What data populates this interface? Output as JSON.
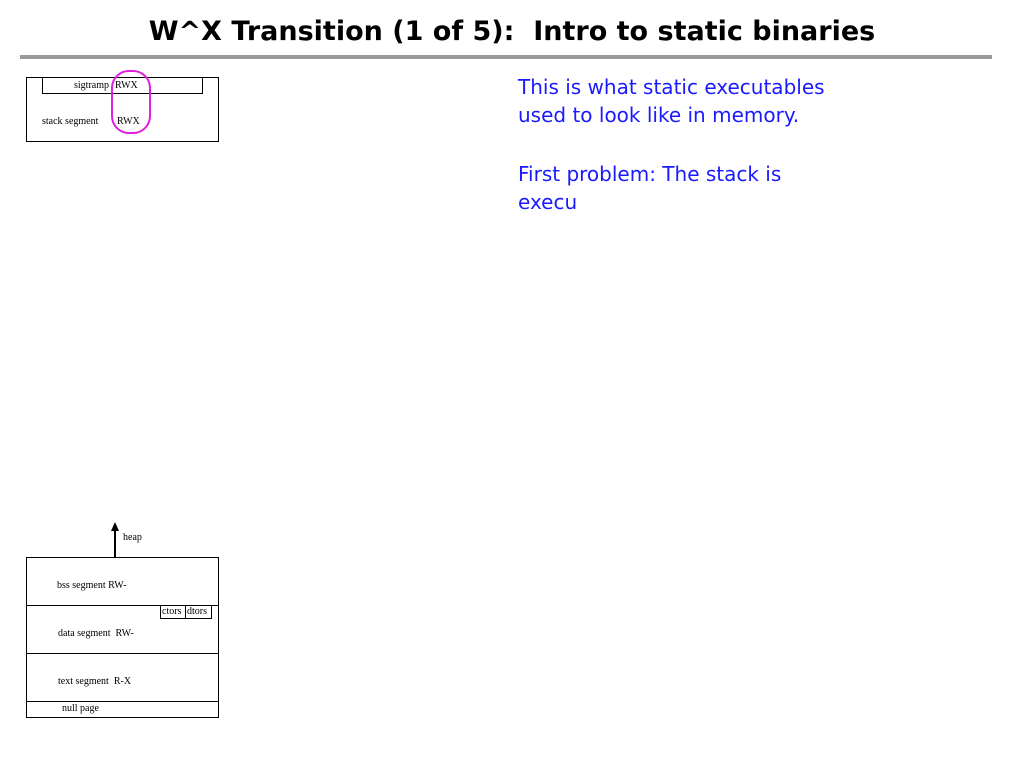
{
  "title": "W^X Transition (1 of 5):  Intro to static binaries",
  "stack_diagram": {
    "sigtramp_label": "sigtramp",
    "sigtramp_perm": "RWX",
    "stack_label": "stack segment",
    "stack_perm": "RWX",
    "highlight_color": "#e020e0"
  },
  "binary_diagram": {
    "heap_label": "heap",
    "bss_label": "bss segment RW-",
    "ctors_label": "ctors",
    "dtors_label": "dtors",
    "data_label": "data segment  RW-",
    "text_label": "text segment  R-X",
    "null_label": "null page"
  },
  "notes": {
    "line1": "This is what static executables",
    "line2": "used to look like in memory.",
    "line3": "First problem: The stack is",
    "line4": "execu",
    "color": "#1a1aff"
  }
}
